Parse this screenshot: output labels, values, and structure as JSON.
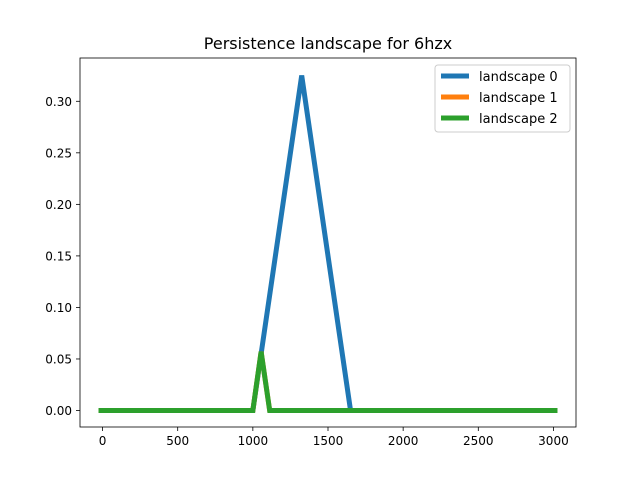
{
  "chart_data": {
    "type": "line",
    "title": "Persistence landscape for 6hzx",
    "xlabel": "",
    "ylabel": "",
    "xlim": [
      -150,
      3150
    ],
    "ylim": [
      -0.016,
      0.342
    ],
    "xticks": [
      0,
      500,
      1000,
      1500,
      2000,
      2500,
      3000
    ],
    "yticks": [
      0.0,
      0.05,
      0.1,
      0.15,
      0.2,
      0.25,
      0.3
    ],
    "xtick_labels": [
      "0",
      "500",
      "1000",
      "1500",
      "2000",
      "2500",
      "3000"
    ],
    "ytick_labels": [
      "0.00",
      "0.05",
      "0.10",
      "0.15",
      "0.20",
      "0.25",
      "0.30"
    ],
    "grid": false,
    "legend_position": "top-right",
    "series": [
      {
        "name": "landscape 0",
        "color": "#1f77b4",
        "points": [
          [
            -10,
            0
          ],
          [
            1000,
            0
          ],
          [
            1325,
            0.325
          ],
          [
            1650,
            0
          ],
          [
            3010,
            0
          ]
        ]
      },
      {
        "name": "landscape 1",
        "color": "#ff7f0e",
        "points": [
          [
            -10,
            0
          ],
          [
            1000,
            0
          ],
          [
            1055,
            0.057
          ],
          [
            1112,
            0
          ],
          [
            3010,
            0
          ]
        ]
      },
      {
        "name": "landscape 2",
        "color": "#2ca02c",
        "points": [
          [
            -10,
            0
          ],
          [
            1000,
            0
          ],
          [
            1055,
            0.057
          ],
          [
            1112,
            0
          ],
          [
            3010,
            0
          ]
        ]
      }
    ]
  }
}
